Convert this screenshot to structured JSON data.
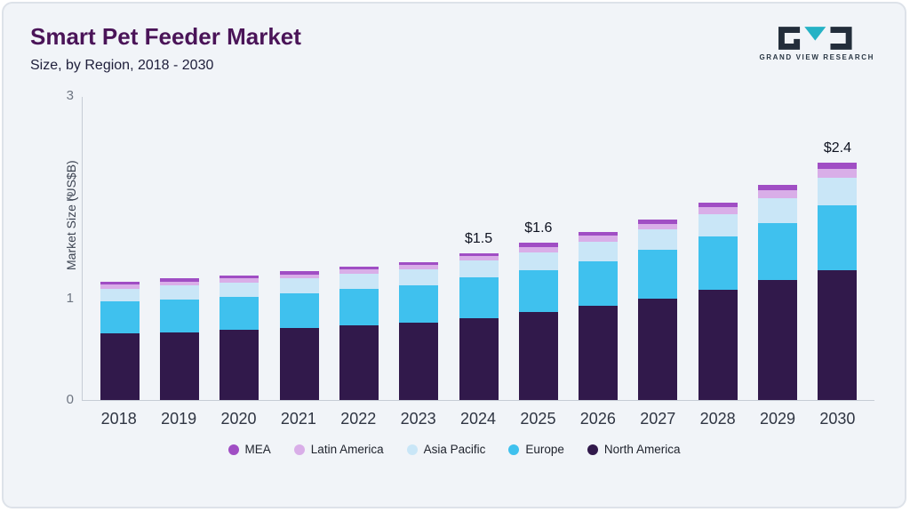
{
  "header": {
    "title": "Smart Pet Feeder Market",
    "subtitle": "Size, by Region, 2018 - 2030",
    "brand": {
      "name": "GRAND VIEW RESEARCH"
    }
  },
  "brand_colors": {
    "dark": "#232e3b",
    "teal": "#25b2c5"
  },
  "chart_data": {
    "type": "bar",
    "stacked": true,
    "title": "Smart Pet Feeder Market Size, by Region, 2018 - 2030",
    "ylabel": "Market Size (US$B)",
    "ylim": [
      0,
      3
    ],
    "yticks": [
      0,
      1,
      2,
      3
    ],
    "grid": false,
    "legend_position": "bottom",
    "categories": [
      "2018",
      "2019",
      "2020",
      "2021",
      "2022",
      "2023",
      "2024",
      "2025",
      "2026",
      "2027",
      "2028",
      "2029",
      "2030"
    ],
    "series": [
      {
        "name": "North America",
        "color": "#31194b",
        "values": [
          0.66,
          0.67,
          0.69,
          0.71,
          0.74,
          0.76,
          0.81,
          0.87,
          0.93,
          1.0,
          1.09,
          1.18,
          1.28
        ]
      },
      {
        "name": "Europe",
        "color": "#3fc1ee",
        "values": [
          0.31,
          0.32,
          0.33,
          0.34,
          0.36,
          0.37,
          0.4,
          0.41,
          0.44,
          0.48,
          0.52,
          0.57,
          0.64
        ]
      },
      {
        "name": "Asia Pacific",
        "color": "#c9e6f7",
        "values": [
          0.13,
          0.14,
          0.14,
          0.15,
          0.15,
          0.16,
          0.17,
          0.18,
          0.19,
          0.2,
          0.22,
          0.24,
          0.27
        ]
      },
      {
        "name": "Latin America",
        "color": "#d9aee8",
        "values": [
          0.04,
          0.04,
          0.04,
          0.04,
          0.04,
          0.04,
          0.04,
          0.05,
          0.06,
          0.06,
          0.07,
          0.08,
          0.09
        ]
      },
      {
        "name": "MEA",
        "color": "#a04ec4",
        "values": [
          0.03,
          0.03,
          0.03,
          0.03,
          0.03,
          0.03,
          0.03,
          0.04,
          0.04,
          0.04,
          0.05,
          0.05,
          0.06
        ]
      }
    ],
    "annotations": [
      {
        "category": "2024",
        "text": "$1.5"
      },
      {
        "category": "2025",
        "text": "$1.6"
      },
      {
        "category": "2030",
        "text": "$2.4"
      }
    ],
    "legend": [
      "MEA",
      "Latin America",
      "Asia Pacific",
      "Europe",
      "North America"
    ]
  }
}
